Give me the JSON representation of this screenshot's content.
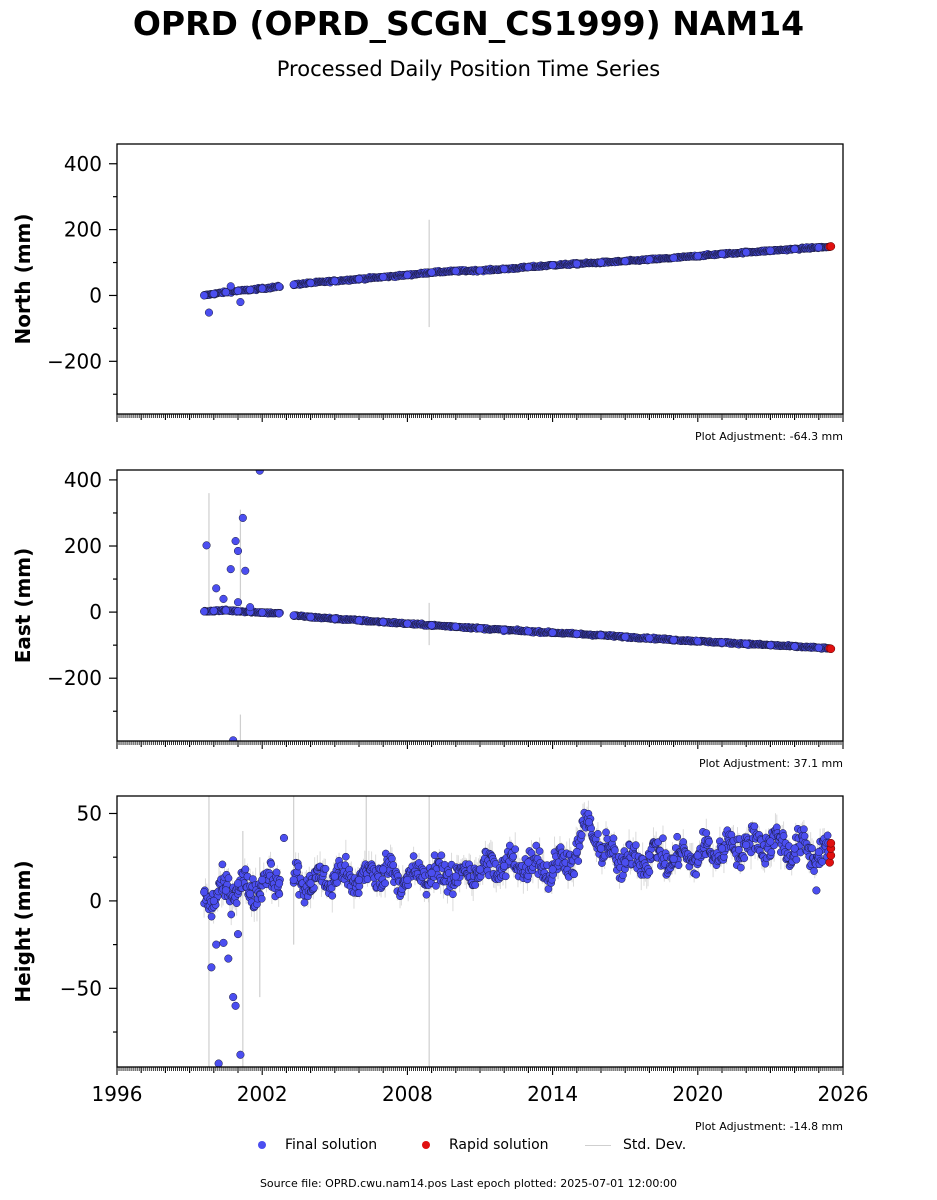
{
  "header": {
    "title": "OPRD (OPRD_SCGN_CS1999) NAM14",
    "subtitle": "Processed Daily Position Time Series"
  },
  "legend": {
    "final_label": "Final solution",
    "rapid_label": "Rapid solution",
    "std_label": "Std. Dev.",
    "colors": {
      "final": "#4b4ef0",
      "rapid": "#e01010",
      "std": "#cfcfcf"
    }
  },
  "footer": {
    "text": "Source file: OPRD.cwu.nam14.pos  Last epoch plotted: 2025-07-01 12:00:00"
  },
  "chart_data": [
    {
      "type": "scatter",
      "ylabel": "North (mm)",
      "xlim": [
        1996,
        2026
      ],
      "ylim": [
        -360,
        460
      ],
      "yticks": [
        400,
        200,
        0,
        -200
      ],
      "ytick_labels": [
        "400",
        "200",
        "0",
        "−200"
      ],
      "adjustment": "Plot Adjustment: -64.3 mm",
      "series": [
        {
          "name": "Final solution",
          "x": [
            1999.6,
            2000.0,
            2000.5,
            2001.0,
            2001.5,
            2002.0,
            2002.7,
            2003.3,
            2004.0,
            2005.0,
            2006.0,
            2007.0,
            2008.0,
            2009.0,
            2010.0,
            2011.0,
            2012.0,
            2013.0,
            2014.0,
            2015.0,
            2016.0,
            2017.0,
            2018.0,
            2019.0,
            2020.0,
            2021.0,
            2022.0,
            2023.0,
            2024.0,
            2025.0,
            2025.4
          ],
          "y": [
            0,
            5,
            10,
            14,
            17,
            21,
            27,
            33,
            38,
            44,
            50,
            56,
            62,
            70,
            74,
            76,
            80,
            86,
            92,
            96,
            100,
            104,
            109,
            114,
            120,
            126,
            131,
            136,
            141,
            146,
            147
          ]
        },
        {
          "name": "Rapid solution",
          "x": [
            2025.45,
            2025.5
          ],
          "y": [
            148,
            149
          ]
        }
      ],
      "outliers": {
        "x": [
          1999.8,
          2001.1,
          2000.7
        ],
        "y": [
          -52,
          -20,
          28
        ]
      },
      "std_spikes": [
        {
          "x": 2008.9,
          "y0": -96,
          "y1": 230
        }
      ]
    },
    {
      "type": "scatter",
      "ylabel": "East (mm)",
      "xlim": [
        1996,
        2026
      ],
      "ylim": [
        -390,
        430
      ],
      "yticks": [
        400,
        200,
        0,
        -200
      ],
      "ytick_labels": [
        "400",
        "200",
        "0",
        "−200"
      ],
      "adjustment": "Plot Adjustment: 37.1 mm",
      "series": [
        {
          "name": "Final solution",
          "x": [
            1999.6,
            2000.0,
            2000.5,
            2001.0,
            2001.5,
            2002.0,
            2002.7,
            2003.3,
            2004.0,
            2005.0,
            2006.0,
            2007.0,
            2008.0,
            2009.0,
            2010.0,
            2011.0,
            2012.0,
            2013.0,
            2014.0,
            2015.0,
            2016.0,
            2017.0,
            2018.0,
            2019.0,
            2020.0,
            2021.0,
            2022.0,
            2023.0,
            2024.0,
            2025.0,
            2025.4
          ],
          "y": [
            2,
            4,
            5,
            3,
            1,
            -1,
            -4,
            -10,
            -15,
            -20,
            -25,
            -30,
            -35,
            -40,
            -44,
            -49,
            -54,
            -58,
            -62,
            -66,
            -70,
            -75,
            -79,
            -84,
            -88,
            -92,
            -96,
            -100,
            -104,
            -108,
            -110
          ]
        },
        {
          "name": "Rapid solution",
          "x": [
            2025.45,
            2025.5
          ],
          "y": [
            -110,
            -111
          ]
        }
      ],
      "outliers": {
        "x": [
          1999.7,
          2000.1,
          2000.4,
          2000.7,
          2000.9,
          2001.0,
          2001.2,
          2001.3,
          2001.5,
          2001.0,
          2000.8,
          2001.9
        ],
        "y": [
          202,
          72,
          40,
          130,
          215,
          185,
          285,
          125,
          15,
          30,
          -388,
          428
        ]
      },
      "std_spikes": [
        {
          "x": 2008.9,
          "y0": -100,
          "y1": 28
        },
        {
          "x": 1999.8,
          "y0": 0,
          "y1": 360
        },
        {
          "x": 2001.1,
          "y0": 0,
          "y1": 310
        },
        {
          "x": 2001.1,
          "y0": -390,
          "y1": -310
        }
      ]
    },
    {
      "type": "scatter",
      "ylabel": "Height (mm)",
      "xlabel": "",
      "xlim": [
        1996,
        2026
      ],
      "ylim": [
        -95,
        60
      ],
      "yticks": [
        50,
        0,
        -50
      ],
      "ytick_labels": [
        "50",
        "0",
        "−50"
      ],
      "xticks": [
        1996,
        2002,
        2008,
        2014,
        2020,
        2026
      ],
      "xtick_labels": [
        "1996",
        "2002",
        "2008",
        "2014",
        "2020",
        "2026"
      ],
      "adjustment": "Plot Adjustment: -14.8 mm",
      "series": [
        {
          "name": "Final solution",
          "x": [
            1999.6,
            2000.0,
            2000.5,
            2001.0,
            2001.5,
            2002.0,
            2002.7,
            2003.3,
            2004.0,
            2005.0,
            2006.0,
            2007.0,
            2008.0,
            2009.0,
            2010.0,
            2011.0,
            2012.0,
            2013.0,
            2014.0,
            2015.0,
            2015.5,
            2016.0,
            2017.0,
            2018.0,
            2019.0,
            2020.0,
            2021.0,
            2022.0,
            2023.0,
            2024.0,
            2025.0,
            2025.4
          ],
          "y": [
            5,
            0,
            6,
            10,
            4,
            12,
            10,
            12,
            10,
            14,
            12,
            18,
            12,
            16,
            14,
            18,
            20,
            22,
            18,
            28,
            45,
            30,
            22,
            26,
            24,
            26,
            30,
            32,
            34,
            30,
            28,
            28
          ]
        },
        {
          "name": "Rapid solution",
          "x": [
            2025.45,
            2025.5,
            2025.5,
            2025.5
          ],
          "y": [
            22,
            26,
            30,
            33
          ]
        }
      ],
      "outliers": {
        "x": [
          1999.9,
          2000.1,
          2000.4,
          2000.6,
          2000.8,
          2000.9,
          2001.1,
          2001.0,
          2000.2,
          2002.9,
          2024.9
        ],
        "y": [
          -38,
          -25,
          -24,
          -33,
          -55,
          -60,
          -88,
          -19,
          -93,
          36,
          6
        ]
      },
      "std_spikes": [
        {
          "x": 2008.9,
          "y0": -95,
          "y1": 60
        },
        {
          "x": 1999.8,
          "y0": -95,
          "y1": 60
        },
        {
          "x": 2001.2,
          "y0": -95,
          "y1": 40
        },
        {
          "x": 2001.9,
          "y0": -55,
          "y1": 25
        },
        {
          "x": 2003.3,
          "y0": -25,
          "y1": 60
        },
        {
          "x": 2006.3,
          "y0": 10,
          "y1": 60
        }
      ]
    }
  ]
}
